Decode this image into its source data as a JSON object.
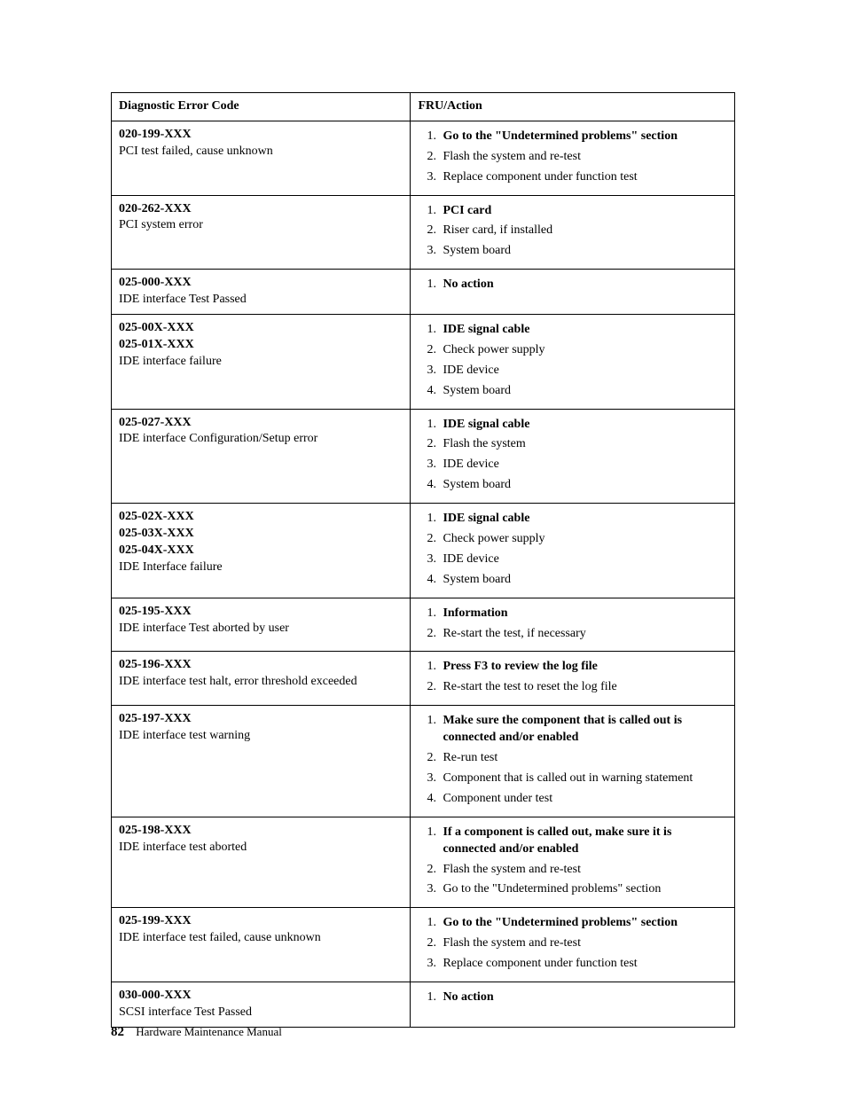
{
  "table": {
    "border_color": "#000000",
    "header": {
      "col1": "Diagnostic Error Code",
      "col2": "FRU/Action"
    },
    "rows": [
      {
        "codes": [
          "020-199-XXX"
        ],
        "desc": "PCI test failed, cause unknown",
        "actions": [
          {
            "text": "Go to the \"Undetermined problems\" section",
            "bold": true
          },
          {
            "text": "Flash the system and re-test",
            "bold": false
          },
          {
            "text": "Replace component under function test",
            "bold": false
          }
        ]
      },
      {
        "codes": [
          "020-262-XXX"
        ],
        "desc": "PCI system error",
        "actions": [
          {
            "text": "PCI card",
            "bold": true
          },
          {
            "text": "Riser card, if installed",
            "bold": false
          },
          {
            "text": "System board",
            "bold": false
          }
        ]
      },
      {
        "codes": [
          "025-000-XXX"
        ],
        "desc": "IDE interface Test Passed",
        "actions": [
          {
            "text": "No action",
            "bold": true
          }
        ]
      },
      {
        "codes": [
          "025-00X-XXX",
          "025-01X-XXX"
        ],
        "desc": "IDE interface failure",
        "actions": [
          {
            "text": "IDE signal cable",
            "bold": true
          },
          {
            "text": "Check power supply",
            "bold": false
          },
          {
            "text": "IDE device",
            "bold": false
          },
          {
            "text": "System board",
            "bold": false
          }
        ]
      },
      {
        "codes": [
          "025-027-XXX"
        ],
        "desc": "IDE interface Configuration/Setup error",
        "actions": [
          {
            "text": "IDE signal cable",
            "bold": true
          },
          {
            "text": "Flash the system",
            "bold": false
          },
          {
            "text": "IDE device",
            "bold": false
          },
          {
            "text": "System board",
            "bold": false
          }
        ]
      },
      {
        "codes": [
          "025-02X-XXX",
          "025-03X-XXX",
          "025-04X-XXX"
        ],
        "desc": "IDE Interface failure",
        "actions": [
          {
            "text": "IDE signal cable",
            "bold": true
          },
          {
            "text": "Check power supply",
            "bold": false
          },
          {
            "text": "IDE device",
            "bold": false
          },
          {
            "text": "System board",
            "bold": false
          }
        ]
      },
      {
        "codes": [
          "025-195-XXX"
        ],
        "desc": "IDE interface Test aborted by user",
        "actions": [
          {
            "text": "Information",
            "bold": true
          },
          {
            "text": "Re-start the test, if necessary",
            "bold": false
          }
        ]
      },
      {
        "codes": [
          "025-196-XXX"
        ],
        "desc": "IDE interface test halt, error threshold exceeded",
        "actions": [
          {
            "text": "Press F3 to review the log file",
            "bold": true
          },
          {
            "text": "Re-start the test to reset the log file",
            "bold": false
          }
        ]
      },
      {
        "codes": [
          "025-197-XXX"
        ],
        "desc": "IDE interface test warning",
        "actions": [
          {
            "text": "Make sure the component that is called out is connected and/or enabled",
            "bold": true
          },
          {
            "text": "Re-run test",
            "bold": false
          },
          {
            "text": "Component that is called out in warning statement",
            "bold": false
          },
          {
            "text": "Component under test",
            "bold": false
          }
        ]
      },
      {
        "codes": [
          "025-198-XXX"
        ],
        "desc": "IDE interface test aborted",
        "actions": [
          {
            "text": "If a component is called out, make sure it is connected and/or enabled",
            "bold": true
          },
          {
            "text": "Flash the system and re-test",
            "bold": false
          },
          {
            "text": "Go to the \"Undetermined problems\" section",
            "bold": false
          }
        ]
      },
      {
        "codes": [
          "025-199-XXX"
        ],
        "desc": "IDE interface test failed, cause unknown",
        "actions": [
          {
            "text": "Go to the \"Undetermined problems\" section",
            "bold": true
          },
          {
            "text": "Flash the system and re-test",
            "bold": false
          },
          {
            "text": "Replace component under function test",
            "bold": false
          }
        ]
      },
      {
        "codes": [
          "030-000-XXX"
        ],
        "desc": "SCSI interface Test Passed",
        "actions": [
          {
            "text": "No action",
            "bold": true
          }
        ]
      }
    ]
  },
  "footer": {
    "page_number": "82",
    "book_title": "Hardware Maintenance Manual"
  }
}
